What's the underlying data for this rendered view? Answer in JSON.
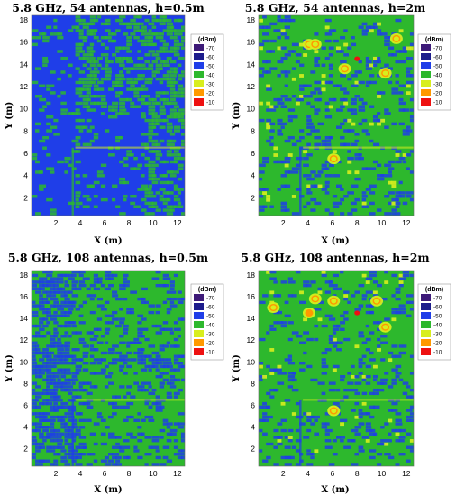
{
  "chart_data": [
    {
      "type": "heatmap",
      "title": "5.8 GHz, 54 antennas, h=0.5m",
      "xlabel": "X (m)",
      "ylabel": "Y (m)",
      "xlim": [
        0,
        12.6
      ],
      "ylim": [
        0.4,
        18.4
      ],
      "xticks": [
        2,
        4,
        6,
        8,
        10,
        12
      ],
      "yticks": [
        2,
        4,
        6,
        8,
        10,
        12,
        14,
        16,
        18
      ],
      "colorbar": {
        "unit": "(dBm)",
        "levels": [
          -70,
          -60,
          -50,
          -40,
          -30,
          -20,
          -10
        ]
      },
      "hotspots": [],
      "dominant_level_dBm": -50
    },
    {
      "type": "heatmap",
      "title": "5.8 GHz, 54 antennas, h=2m",
      "xlabel": "X (m)",
      "ylabel": "Y (m)",
      "xlim": [
        0,
        12.6
      ],
      "ylim": [
        0.4,
        18.4
      ],
      "xticks": [
        2,
        4,
        6,
        8,
        10,
        12
      ],
      "yticks": [
        2,
        4,
        6,
        8,
        10,
        12,
        14,
        16,
        18
      ],
      "colorbar": {
        "unit": "(dBm)",
        "levels": [
          -70,
          -60,
          -50,
          -40,
          -30,
          -20,
          -10
        ]
      },
      "hotspots": [
        {
          "x": 8.0,
          "y": 14.5,
          "level_dBm": -10
        },
        {
          "x": 4.1,
          "y": 15.8,
          "level_dBm": -30
        },
        {
          "x": 4.6,
          "y": 15.8,
          "level_dBm": -30
        },
        {
          "x": 7.0,
          "y": 13.6,
          "level_dBm": -30
        },
        {
          "x": 10.3,
          "y": 13.2,
          "level_dBm": -30
        },
        {
          "x": 11.2,
          "y": 16.3,
          "level_dBm": -30
        },
        {
          "x": 6.1,
          "y": 5.5,
          "level_dBm": -30
        }
      ],
      "dominant_level_dBm": -40
    },
    {
      "type": "heatmap",
      "title": "5.8 GHz, 108 antennas, h=0.5m",
      "xlabel": "X (m)",
      "ylabel": "Y (m)",
      "xlim": [
        0,
        12.6
      ],
      "ylim": [
        0.4,
        18.4
      ],
      "xticks": [
        2,
        4,
        6,
        8,
        10,
        12
      ],
      "yticks": [
        2,
        4,
        6,
        8,
        10,
        12,
        14,
        16,
        18
      ],
      "colorbar": {
        "unit": "(dBm)",
        "levels": [
          -70,
          -60,
          -50,
          -40,
          -30,
          -20,
          -10
        ]
      },
      "hotspots": [],
      "dominant_level_dBm": -40
    },
    {
      "type": "heatmap",
      "title": "5.8 GHz, 108 antennas, h=2m",
      "xlabel": "X (m)",
      "ylabel": "Y (m)",
      "xlim": [
        0,
        12.6
      ],
      "ylim": [
        0.4,
        18.4
      ],
      "xticks": [
        2,
        4,
        6,
        8,
        10,
        12
      ],
      "yticks": [
        2,
        4,
        6,
        8,
        10,
        12,
        14,
        16,
        18
      ],
      "colorbar": {
        "unit": "(dBm)",
        "levels": [
          -70,
          -60,
          -50,
          -40,
          -30,
          -20,
          -10
        ]
      },
      "hotspots": [
        {
          "x": 8.0,
          "y": 14.5,
          "level_dBm": -10
        },
        {
          "x": 4.1,
          "y": 14.5,
          "level_dBm": -20
        },
        {
          "x": 4.6,
          "y": 15.8,
          "level_dBm": -30
        },
        {
          "x": 6.1,
          "y": 15.6,
          "level_dBm": -30
        },
        {
          "x": 9.6,
          "y": 15.6,
          "level_dBm": -30
        },
        {
          "x": 10.3,
          "y": 13.2,
          "level_dBm": -30
        },
        {
          "x": 1.2,
          "y": 15.0,
          "level_dBm": -30
        },
        {
          "x": 6.1,
          "y": 5.5,
          "level_dBm": -30
        }
      ],
      "dominant_level_dBm": -40
    }
  ],
  "colors": {
    "-70": "#3d1a78",
    "-60": "#1c1c8c",
    "-50": "#1f3ee8",
    "-40": "#2db82d",
    "-30": "#d8ee1e",
    "-20": "#ff9900",
    "-10": "#ee1111"
  }
}
